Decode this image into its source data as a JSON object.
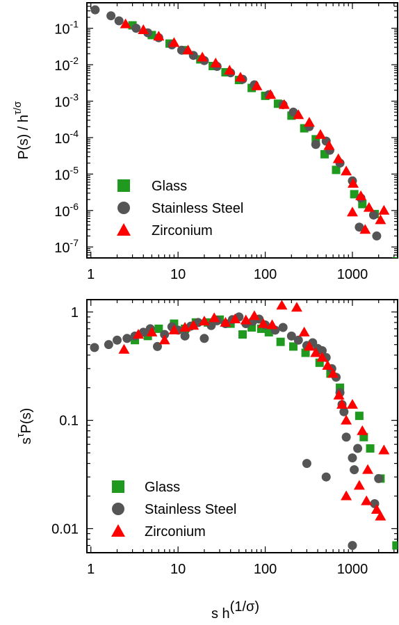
{
  "chart_data": [
    {
      "type": "scatter",
      "title": "",
      "xlabel": "",
      "ylabel": {
        "base": "P(s) / h",
        "sup": "τ/σ"
      },
      "x_scale": "log",
      "y_scale": "log",
      "xlim": [
        0.9,
        3300
      ],
      "ylim": [
        5e-08,
        0.5
      ],
      "x_ticks": [
        {
          "value": 1,
          "label": "1"
        },
        {
          "value": 10,
          "label": "10"
        },
        {
          "value": 100,
          "label": "100"
        },
        {
          "value": 1000,
          "label": "1000"
        }
      ],
      "y_ticks": [
        {
          "value": 0.1,
          "base": "10",
          "exp": "-1"
        },
        {
          "value": 0.01,
          "base": "10",
          "exp": "-2"
        },
        {
          "value": 0.001,
          "base": "10",
          "exp": "-3"
        },
        {
          "value": 0.0001,
          "base": "10",
          "exp": "-4"
        },
        {
          "value": 1e-05,
          "base": "10",
          "exp": "-5"
        },
        {
          "value": 1e-06,
          "base": "10",
          "exp": "-6"
        },
        {
          "value": 1e-07,
          "base": "10",
          "exp": "-7"
        }
      ],
      "legend_position": "bottom-left",
      "series": [
        {
          "name": "Glass",
          "marker": "square",
          "color": "#1f9a1f",
          "points": [
            [
              3,
              0.12
            ],
            [
              5,
              0.065
            ],
            [
              8,
              0.038
            ],
            [
              12,
              0.025
            ],
            [
              18,
              0.014
            ],
            [
              25,
              0.0092
            ],
            [
              35,
              0.0062
            ],
            [
              50,
              0.0038
            ],
            [
              70,
              0.0023
            ],
            [
              100,
              0.0014
            ],
            [
              140,
              0.00085
            ],
            [
              200,
              0.0004
            ],
            [
              280,
              0.00018
            ],
            [
              380,
              9e-05
            ],
            [
              480,
              3.5e-05
            ],
            [
              650,
              1.3e-05
            ],
            [
              1050,
              2.8e-06
            ],
            [
              1300,
              1.5e-06
            ],
            [
              1800,
              8e-07
            ],
            [
              3200,
              4e-08
            ]
          ]
        },
        {
          "name": "Stainless Steel",
          "marker": "circle",
          "color": "#555555",
          "points": [
            [
              1.12,
              0.32
            ],
            [
              1.7,
              0.22
            ],
            [
              2.1,
              0.16
            ],
            [
              3.3,
              0.1
            ],
            [
              4.5,
              0.075
            ],
            [
              6,
              0.055
            ],
            [
              8.5,
              0.035
            ],
            [
              11,
              0.025
            ],
            [
              15,
              0.018
            ],
            [
              20,
              0.013
            ],
            [
              28,
              0.009
            ],
            [
              40,
              0.006
            ],
            [
              55,
              0.004
            ],
            [
              75,
              0.0028
            ],
            [
              110,
              0.0015
            ],
            [
              160,
              0.0008
            ],
            [
              210,
              0.0005
            ],
            [
              320,
              0.0002
            ],
            [
              380,
              6.5e-05
            ],
            [
              500,
              8e-05
            ],
            [
              720,
              2e-05
            ],
            [
              550,
              4.5e-05
            ],
            [
              1000,
              6.5e-06
            ],
            [
              1250,
              2.2e-06
            ],
            [
              1750,
              7.5e-07
            ],
            [
              1200,
              3.5e-07
            ],
            [
              1900,
              2e-07
            ]
          ]
        },
        {
          "name": "Zirconium",
          "marker": "triangle",
          "color": "#ff0000",
          "points": [
            [
              2.5,
              0.13
            ],
            [
              4,
              0.09
            ],
            [
              6,
              0.06
            ],
            [
              9,
              0.04
            ],
            [
              13,
              0.025
            ],
            [
              19,
              0.016
            ],
            [
              27,
              0.011
            ],
            [
              39,
              0.007
            ],
            [
              52,
              0.0045
            ],
            [
              80,
              0.0026
            ],
            [
              115,
              0.0015
            ],
            [
              165,
              0.0008
            ],
            [
              240,
              0.00042
            ],
            [
              320,
              0.00026
            ],
            [
              430,
              0.00012
            ],
            [
              540,
              6e-05
            ],
            [
              690,
              2.6e-05
            ],
            [
              850,
              1.2e-05
            ],
            [
              1020,
              5.5e-06
            ],
            [
              1250,
              2.5e-06
            ],
            [
              1550,
              1.2e-06
            ],
            [
              2100,
              5.5e-07
            ],
            [
              1000,
              9e-07
            ],
            [
              1400,
              3e-07
            ],
            [
              2300,
              1e-06
            ]
          ]
        }
      ]
    },
    {
      "type": "scatter",
      "title": "",
      "xlabel": {
        "base": "s h",
        "sup": "(1/σ)"
      },
      "ylabel": {
        "base": "s",
        "sup": "τ",
        "tail": "P(s)"
      },
      "x_scale": "log",
      "y_scale": "log",
      "xlim": [
        0.9,
        3300
      ],
      "ylim": [
        0.006,
        1.3
      ],
      "x_ticks": [
        {
          "value": 1,
          "label": "1"
        },
        {
          "value": 10,
          "label": "10"
        },
        {
          "value": 100,
          "label": "100"
        },
        {
          "value": 1000,
          "label": "1000"
        }
      ],
      "y_ticks": [
        {
          "value": 1,
          "label": "1"
        },
        {
          "value": 0.1,
          "label": "0.1"
        },
        {
          "value": 0.01,
          "label": "0.01"
        }
      ],
      "legend_position": "bottom-left",
      "series": [
        {
          "name": "Glass",
          "marker": "square",
          "color": "#1f9a1f",
          "points": [
            [
              3.2,
              0.55
            ],
            [
              4.5,
              0.6
            ],
            [
              6,
              0.7
            ],
            [
              9,
              0.78
            ],
            [
              12,
              0.7
            ],
            [
              16,
              0.8
            ],
            [
              22,
              0.8
            ],
            [
              30,
              0.85
            ],
            [
              40,
              0.78
            ],
            [
              55,
              0.62
            ],
            [
              70,
              0.72
            ],
            [
              90,
              0.7
            ],
            [
              110,
              0.65
            ],
            [
              150,
              0.53
            ],
            [
              210,
              0.48
            ],
            [
              290,
              0.42
            ],
            [
              420,
              0.34
            ],
            [
              560,
              0.27
            ],
            [
              720,
              0.2
            ],
            [
              1200,
              0.11
            ],
            [
              1350,
              0.07
            ],
            [
              1600,
              0.055
            ],
            [
              2100,
              0.029
            ],
            [
              3200,
              0.007
            ]
          ]
        },
        {
          "name": "Stainless Steel",
          "marker": "circle",
          "color": "#555555",
          "points": [
            [
              1.1,
              0.47
            ],
            [
              1.6,
              0.5
            ],
            [
              2,
              0.55
            ],
            [
              2.6,
              0.57
            ],
            [
              3.2,
              0.6
            ],
            [
              4,
              0.65
            ],
            [
              4.8,
              0.7
            ],
            [
              5.8,
              0.48
            ],
            [
              7,
              0.62
            ],
            [
              8.5,
              0.73
            ],
            [
              10,
              0.68
            ],
            [
              12,
              0.6
            ],
            [
              14,
              0.74
            ],
            [
              17,
              0.8
            ],
            [
              20,
              0.57
            ],
            [
              24,
              0.75
            ],
            [
              28,
              0.83
            ],
            [
              35,
              0.78
            ],
            [
              42,
              0.85
            ],
            [
              50,
              0.9
            ],
            [
              60,
              0.78
            ],
            [
              72,
              0.82
            ],
            [
              85,
              0.86
            ],
            [
              100,
              0.76
            ],
            [
              130,
              0.68
            ],
            [
              160,
              0.72
            ],
            [
              200,
              0.6
            ],
            [
              240,
              0.55
            ],
            [
              300,
              0.49
            ],
            [
              350,
              0.52
            ],
            [
              400,
              0.46
            ],
            [
              450,
              0.44
            ],
            [
              500,
              0.38
            ],
            [
              580,
              0.3
            ],
            [
              650,
              0.25
            ],
            [
              720,
              0.18
            ],
            [
              760,
              0.14
            ],
            [
              800,
              0.12
            ],
            [
              850,
              0.07
            ],
            [
              1000,
              0.045
            ],
            [
              1050,
              0.035
            ],
            [
              1150,
              0.055
            ],
            [
              300,
              0.04
            ],
            [
              500,
              0.03
            ],
            [
              1000,
              0.007
            ],
            [
              1800,
              0.017
            ],
            [
              2000,
              0.029
            ]
          ]
        },
        {
          "name": "Zirconium",
          "marker": "triangle",
          "color": "#ff0000",
          "points": [
            [
              2.4,
              0.45
            ],
            [
              3.5,
              0.62
            ],
            [
              5,
              0.65
            ],
            [
              7,
              0.55
            ],
            [
              9,
              0.68
            ],
            [
              12,
              0.72
            ],
            [
              15,
              0.75
            ],
            [
              20,
              0.82
            ],
            [
              26,
              0.88
            ],
            [
              35,
              0.8
            ],
            [
              45,
              0.86
            ],
            [
              60,
              0.84
            ],
            [
              75,
              0.92
            ],
            [
              95,
              0.78
            ],
            [
              120,
              0.76
            ],
            [
              155,
              1.15
            ],
            [
              230,
              1.1
            ],
            [
              280,
              0.65
            ],
            [
              320,
              0.48
            ],
            [
              380,
              0.42
            ],
            [
              450,
              0.38
            ],
            [
              520,
              0.32
            ],
            [
              600,
              0.27
            ],
            [
              700,
              0.17
            ],
            [
              760,
              0.14
            ],
            [
              850,
              0.1
            ],
            [
              1000,
              0.14
            ],
            [
              1300,
              0.08
            ],
            [
              1500,
              0.035
            ],
            [
              2300,
              0.053
            ],
            [
              850,
              0.02
            ],
            [
              1200,
              0.025
            ],
            [
              1450,
              0.018
            ],
            [
              1900,
              0.015
            ],
            [
              2100,
              0.013
            ]
          ]
        }
      ]
    }
  ]
}
